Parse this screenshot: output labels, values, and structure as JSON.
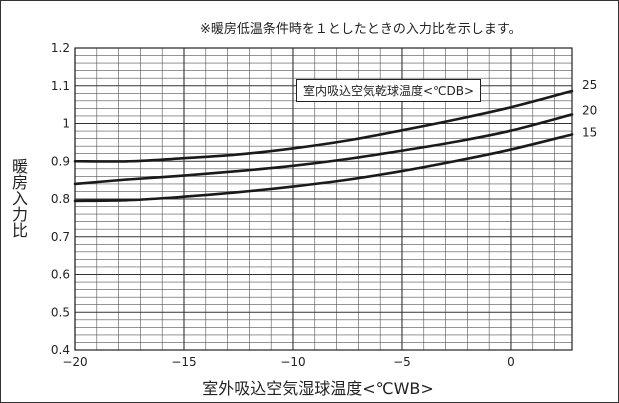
{
  "chart_data": {
    "type": "line",
    "title": "",
    "note": "※暖房低温条件時を１としたときの入力比を示します。",
    "xlabel": "室外吸込空気湿球温度<℃WB>",
    "ylabel": "暖房入力比",
    "legend_title": "室内吸込空気乾球温度<℃DB>",
    "xlim": [
      -20,
      2.8
    ],
    "ylim": [
      0.4,
      1.2
    ],
    "x_ticks": [
      -20,
      -15,
      -10,
      -5,
      0
    ],
    "x_tick_labels": [
      "−20",
      "−15",
      "−10",
      "−5",
      "0"
    ],
    "y_ticks": [
      0.4,
      0.5,
      0.6,
      0.7,
      0.8,
      0.9,
      1.0,
      1.1,
      1.2
    ],
    "y_tick_labels": [
      "0.4",
      "0.5",
      "0.6",
      "0.7",
      "0.8",
      "0.9",
      "1",
      "1.1",
      "1.2"
    ],
    "grid": true,
    "x": [
      -20,
      -17.5,
      -15,
      -12.5,
      -10,
      -7.5,
      -5,
      -2.5,
      0,
      2.8
    ],
    "series": [
      {
        "name": "25",
        "values": [
          0.9,
          0.9,
          0.908,
          0.918,
          0.934,
          0.955,
          0.982,
          1.011,
          1.043,
          1.086
        ]
      },
      {
        "name": "20",
        "values": [
          0.84,
          0.852,
          0.862,
          0.874,
          0.888,
          0.906,
          0.928,
          0.952,
          0.981,
          1.024
        ]
      },
      {
        "name": "15",
        "values": [
          0.795,
          0.797,
          0.806,
          0.818,
          0.833,
          0.851,
          0.874,
          0.901,
          0.931,
          0.971
        ]
      }
    ]
  }
}
